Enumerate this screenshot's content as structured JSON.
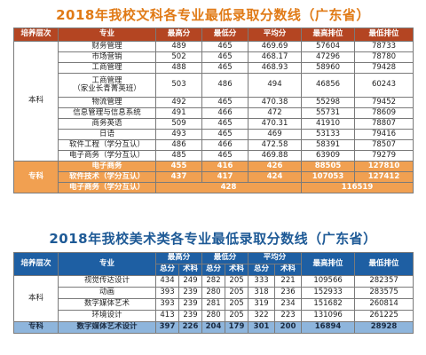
{
  "title1": "2018年我校文科各专业最低录取分数线（广东省）",
  "title2": "2018年我校美术类各专业最低录取分数线（广东省）",
  "table1": {
    "headers": [
      "培养层次",
      "专业",
      "最高分",
      "最低分",
      "平均分",
      "最高排位",
      "最低排位"
    ],
    "benke_label": "本科",
    "benke_rows": [
      [
        "财务管理",
        "489",
        "465",
        "469.69",
        "57604",
        "78733"
      ],
      [
        "市场营销",
        "502",
        "465",
        "468.17",
        "47296",
        "78780"
      ],
      [
        "工商管理",
        "488",
        "465",
        "468.93",
        "58960",
        "79428"
      ],
      [
        "工商管理\n（家业长青菁英班）",
        "503",
        "486",
        "494",
        "46856",
        "60243"
      ],
      [
        "物流管理",
        "492",
        "465",
        "470.38",
        "55298",
        "79452"
      ],
      [
        "信息管理与信息系统",
        "491",
        "466",
        "472",
        "55731",
        "78609"
      ],
      [
        "商务英语",
        "509",
        "465",
        "470.31",
        "41910",
        "78807"
      ],
      [
        "日语",
        "493",
        "465",
        "469",
        "53133",
        "79416"
      ],
      [
        "软件工程（学分互认）",
        "486",
        "466",
        "472.58",
        "58391",
        "78507"
      ],
      [
        "电子商务（学分互认）",
        "485",
        "465",
        "469.88",
        "63909",
        "79279"
      ]
    ],
    "zhuanke_label": "专科",
    "zhuanke_rows": [
      [
        "电子商务",
        "455",
        "416",
        "426",
        "88505",
        "127810"
      ],
      [
        "软件技术（学分互认）",
        "437",
        "417",
        "424",
        "107053",
        "127412"
      ]
    ],
    "zhuanke_last": [
      "电子商务（学分互认）",
      "428",
      "116519"
    ]
  },
  "table2": {
    "headers": [
      "培养层次",
      "专业",
      "最高分",
      "最低分",
      "平均分",
      "最高排位",
      "最低排位"
    ],
    "subheaders": [
      "总分",
      "术科",
      "总分",
      "术科",
      "总分",
      "术科"
    ],
    "benke_label": "本科",
    "benke_rows": [
      [
        "视觉传达设计",
        "434",
        "249",
        "282",
        "205",
        "333",
        "221",
        "109566",
        "282357"
      ],
      [
        "动画",
        "393",
        "239",
        "280",
        "205",
        "318",
        "236",
        "152933",
        "283575"
      ],
      [
        "数字媒体艺术",
        "393",
        "239",
        "281",
        "205",
        "319",
        "234",
        "151682",
        "260814"
      ],
      [
        "环境设计",
        "413",
        "239",
        "280",
        "205",
        "322",
        "223",
        "131096",
        "261225"
      ]
    ],
    "zhuanke_label": "专科",
    "zhuanke_rows": [
      [
        "数字媒体艺术设计",
        "397",
        "226",
        "204",
        "179",
        "301",
        "200",
        "16894",
        "28928"
      ]
    ]
  }
}
